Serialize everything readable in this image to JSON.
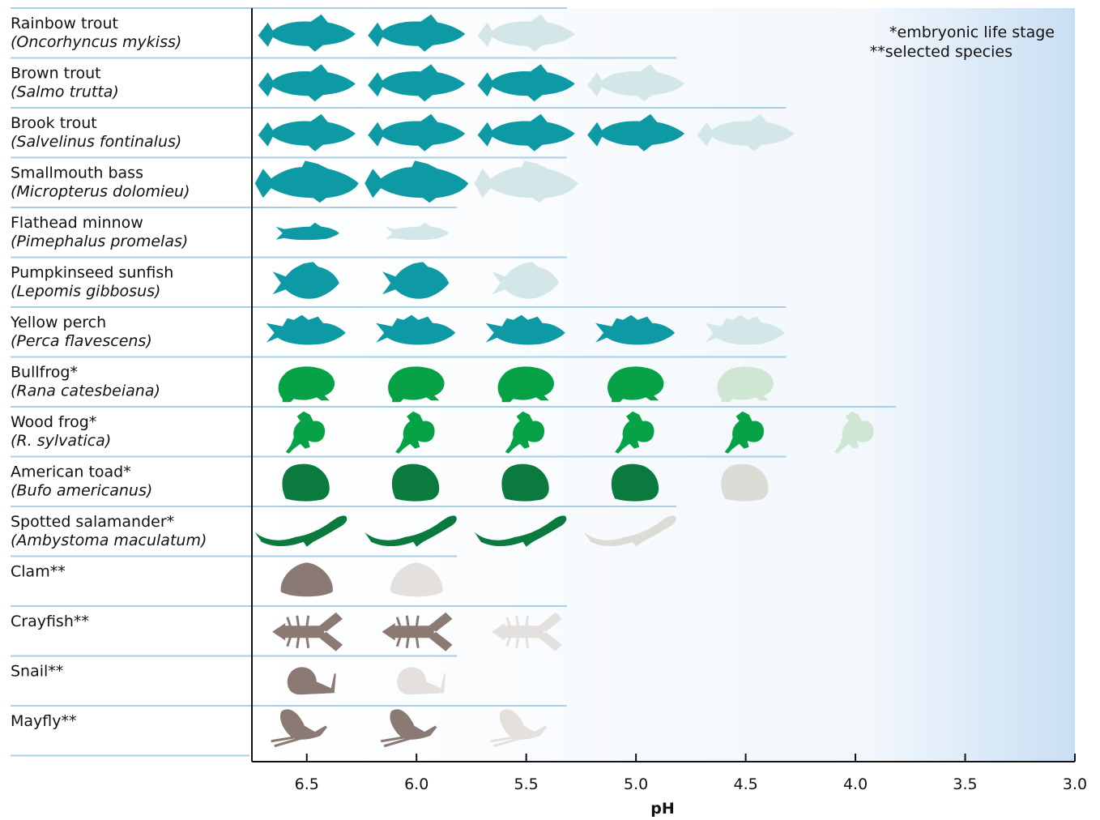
{
  "chart_data": {
    "type": "pictograph",
    "categories": [
      "Rainbow trout",
      "Brown trout",
      "Brook trout",
      "Smallmouth bass",
      "Flathead minnow",
      "Pumpkinseed sunfish",
      "Yellow perch",
      "Bullfrog*",
      "Wood frog*",
      "American toad*",
      "Spotted salamander*",
      "Clam**",
      "Crayfish**",
      "Snail**",
      "Mayfly**"
    ],
    "scientific_names": [
      "(Oncorhyncus mykiss)",
      "(Salmo trutta)",
      "(Salvelinus fontinalus)",
      "(Micropterus dolomieu)",
      "(Pimephalus promelas)",
      "(Lepomis gibbosus)",
      "(Perca flavescens)",
      "(Rana catesbeiana)",
      "(R. sylvatica)",
      "(Bufo americanus)",
      "(Ambystoma maculatum)",
      null,
      null,
      null,
      null
    ],
    "icons": [
      "fish",
      "fish",
      "fish",
      "bass",
      "minnow",
      "sunfish",
      "perch",
      "frog",
      "woodfrog",
      "toad",
      "salamander",
      "clam",
      "crayfish",
      "snail",
      "mayfly"
    ],
    "colors": [
      "#0e9aa5",
      "#0e9aa5",
      "#0e9aa5",
      "#0e9aa5",
      "#0e9aa5",
      "#0e9aa5",
      "#0e9aa5",
      "#07a245",
      "#07a245",
      "#0b7a3f",
      "#0b7a3f",
      "#8a7a73",
      "#8a7a73",
      "#8a7a73",
      "#8a7a73"
    ],
    "faded_colors": [
      "#d3e6e8",
      "#d3e6e8",
      "#d3e6e8",
      "#d3e6e8",
      "#d3e6e8",
      "#d3e6e8",
      "#d3e6e8",
      "#cfe6d2",
      "#cfe6d2",
      "#dcdcd6",
      "#dcdcd6",
      "#e4e0dd",
      "#e4e0dd",
      "#e4e0dd",
      "#e4e0dd"
    ],
    "values": [
      6.0,
      5.5,
      5.0,
      6.0,
      6.5,
      6.0,
      5.0,
      5.0,
      4.5,
      5.0,
      5.5,
      6.5,
      6.0,
      6.5,
      6.0
    ],
    "faded": [
      5.5,
      5.0,
      4.5,
      5.5,
      6.0,
      5.5,
      4.5,
      4.5,
      4.0,
      4.5,
      5.0,
      6.0,
      5.5,
      6.0,
      5.5
    ],
    "xlabel": "pH",
    "xlim": [
      6.75,
      3.0
    ],
    "xticks": [
      6.5,
      {
        "value": 6,
        "label": "6.0"
      },
      5.5,
      {
        "value": 5,
        "label": "5.0"
      },
      4.5,
      {
        "value": 4,
        "label": "4.0"
      },
      3.5,
      {
        "value": 3,
        "label": "3.0"
      }
    ],
    "notes": [
      "*embryonic life stage",
      "**selected species"
    ]
  }
}
